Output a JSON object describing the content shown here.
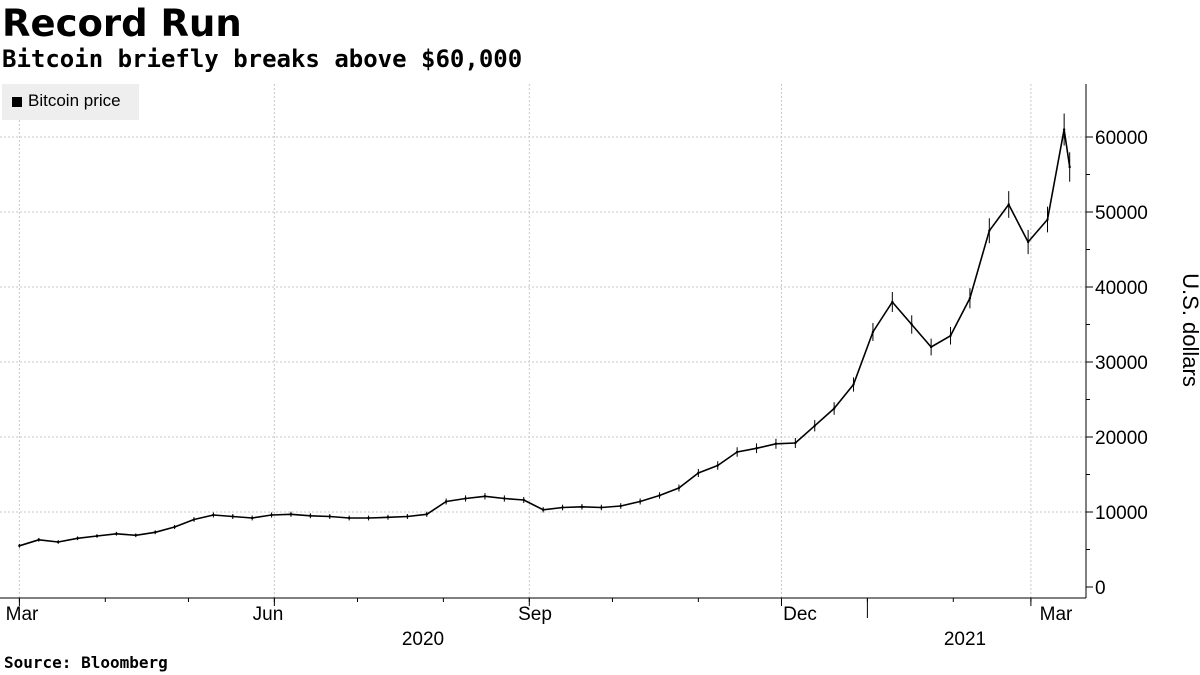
{
  "title": "Record Run",
  "subtitle": "Bitcoin briefly breaks above $60,000",
  "source": "Source: Bloomberg",
  "chart_data": {
    "type": "line",
    "title": "Record Run",
    "subtitle": "Bitcoin briefly breaks above $60,000",
    "xlabel": "",
    "ylabel": "U.S. dollars",
    "ylim": [
      0,
      65000
    ],
    "yticks": [
      0,
      10000,
      20000,
      30000,
      40000,
      50000,
      60000
    ],
    "xticks": [
      "Mar",
      "Jun",
      "Sep",
      "Dec",
      "Mar"
    ],
    "year_labels": [
      "2020",
      "2021"
    ],
    "grid": true,
    "legend_position": "top-left",
    "series": [
      {
        "name": "Bitcoin price",
        "color": "#000000",
        "x": [
          "2020-03-01",
          "2020-03-08",
          "2020-03-15",
          "2020-03-22",
          "2020-03-29",
          "2020-04-05",
          "2020-04-12",
          "2020-04-19",
          "2020-04-26",
          "2020-05-03",
          "2020-05-10",
          "2020-05-17",
          "2020-05-24",
          "2020-05-31",
          "2020-06-07",
          "2020-06-14",
          "2020-06-21",
          "2020-06-28",
          "2020-07-05",
          "2020-07-12",
          "2020-07-19",
          "2020-07-26",
          "2020-08-02",
          "2020-08-09",
          "2020-08-16",
          "2020-08-23",
          "2020-08-30",
          "2020-09-06",
          "2020-09-13",
          "2020-09-20",
          "2020-09-27",
          "2020-10-04",
          "2020-10-11",
          "2020-10-18",
          "2020-10-25",
          "2020-11-01",
          "2020-11-08",
          "2020-11-15",
          "2020-11-22",
          "2020-11-29",
          "2020-12-06",
          "2020-12-13",
          "2020-12-20",
          "2020-12-27",
          "2021-01-03",
          "2021-01-10",
          "2021-01-17",
          "2021-01-24",
          "2021-01-31",
          "2021-02-07",
          "2021-02-14",
          "2021-02-21",
          "2021-02-28",
          "2021-03-07",
          "2021-03-13",
          "2021-03-15"
        ],
        "values": [
          5500,
          6300,
          6000,
          6500,
          6800,
          7100,
          6900,
          7300,
          8000,
          9000,
          9600,
          9400,
          9200,
          9600,
          9700,
          9500,
          9400,
          9200,
          9200,
          9300,
          9400,
          9700,
          11400,
          11800,
          12100,
          11800,
          11600,
          10300,
          10600,
          10700,
          10600,
          10800,
          11400,
          12200,
          13200,
          15200,
          16200,
          18000,
          18500,
          19100,
          19200,
          21500,
          23800,
          27000,
          34000,
          38000,
          35000,
          32000,
          33500,
          38500,
          47500,
          51000,
          46000,
          49000,
          61000,
          56000
        ]
      }
    ]
  }
}
